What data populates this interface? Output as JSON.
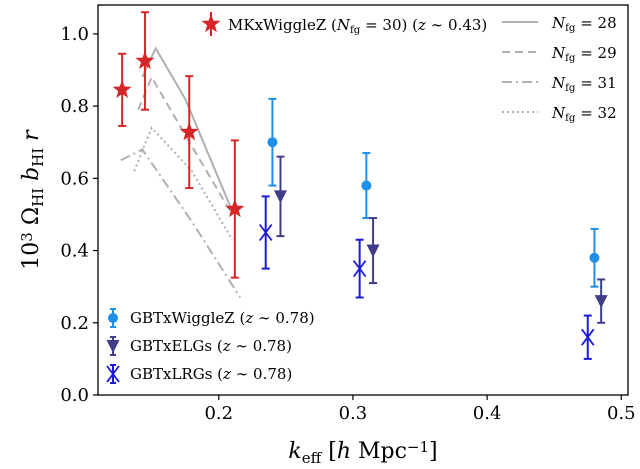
{
  "chart_data": {
    "type": "scatter",
    "xlabel": "k_eff [h Mpc⁻¹]",
    "ylabel": "10³ Ω_HI b_HI r",
    "xlim": [
      0.11,
      0.505
    ],
    "ylim": [
      0.0,
      1.08
    ],
    "x_ticks": [
      0.2,
      0.3,
      0.4,
      0.5
    ],
    "x_tick_labels": [
      "0.2",
      "0.3",
      "0.4",
      "0.5"
    ],
    "y_ticks": [
      0.0,
      0.2,
      0.4,
      0.6,
      0.8,
      1.0
    ],
    "y_tick_labels": [
      "0.0",
      "0.2",
      "0.4",
      "0.6",
      "0.8",
      "1.0"
    ],
    "grid": false,
    "series": [
      {
        "name": "MKxWiggleZ",
        "legend_label": "MKxWiggleZ (N_fg = 30) (z ∼ 0.43)",
        "marker": "star",
        "color": "#d62728",
        "x": [
          0.128,
          0.145,
          0.178,
          0.212
        ],
        "y": [
          0.845,
          0.925,
          0.728,
          0.515
        ],
        "yerr": [
          0.1,
          0.135,
          0.155,
          0.19
        ]
      },
      {
        "name": "GBTxWiggleZ",
        "legend_label": "GBTxWiggleZ (z ∼ 0.78)",
        "marker": "circle",
        "color": "#1f8fe8",
        "x": [
          0.24,
          0.31,
          0.48
        ],
        "y": [
          0.7,
          0.58,
          0.38
        ],
        "yerr": [
          0.12,
          0.09,
          0.08
        ]
      },
      {
        "name": "GBTxELGs",
        "legend_label": "GBTxELGs (z ∼ 0.78)",
        "marker": "triangle-down",
        "color": "#3f3d8a",
        "x": [
          0.246,
          0.315,
          0.485
        ],
        "y": [
          0.55,
          0.4,
          0.26
        ],
        "yerr": [
          0.11,
          0.09,
          0.06
        ]
      },
      {
        "name": "GBTxLRGs",
        "legend_label": "GBTxLRGs (z ∼ 0.78)",
        "marker": "x",
        "color": "#1a1adf",
        "x": [
          0.235,
          0.305,
          0.475
        ],
        "y": [
          0.45,
          0.35,
          0.16
        ],
        "yerr": [
          0.1,
          0.08,
          0.06
        ]
      }
    ],
    "lines": [
      {
        "name": "N_fg = 28",
        "legend_label": "N_fg = 28",
        "style": "solid",
        "color": "#b0b0b0",
        "x": [
          0.143,
          0.153,
          0.175,
          0.21
        ],
        "y": [
          0.88,
          0.96,
          0.82,
          0.51
        ]
      },
      {
        "name": "N_fg = 29",
        "legend_label": "N_fg = 29",
        "style": "dashed",
        "color": "#b0b0b0",
        "x": [
          0.14,
          0.15,
          0.175,
          0.21
        ],
        "y": [
          0.79,
          0.88,
          0.72,
          0.5
        ]
      },
      {
        "name": "N_fg = 31",
        "legend_label": "N_fg = 31",
        "style": "dashdot",
        "color": "#b0b0b0",
        "x": [
          0.127,
          0.143,
          0.18,
          0.216
        ],
        "y": [
          0.65,
          0.68,
          0.48,
          0.27
        ]
      },
      {
        "name": "N_fg = 32",
        "legend_label": "N_fg = 32",
        "style": "dotted",
        "color": "#b0b0b0",
        "x": [
          0.137,
          0.15,
          0.18,
          0.21
        ],
        "y": [
          0.62,
          0.74,
          0.62,
          0.43
        ]
      }
    ],
    "legends": {
      "top_left": "MKxWiggleZ",
      "top_right": "N_fg lines",
      "bottom_left": "GBT cross-correlations"
    }
  }
}
